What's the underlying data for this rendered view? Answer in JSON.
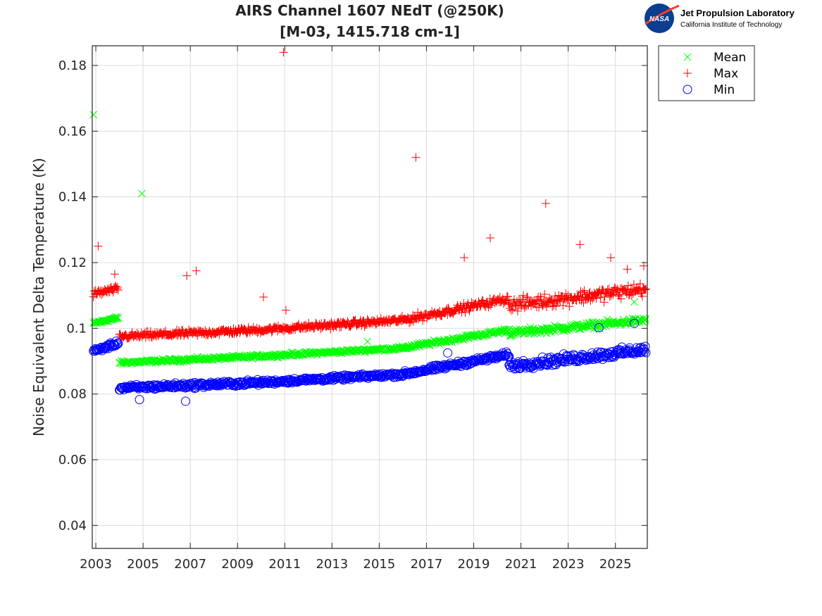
{
  "chart_data": {
    "type": "scatter",
    "title_line1": "AIRS Channel 1607 NEdT (@250K)",
    "title_line2": "[M-03, 1415.718 cm-1]",
    "xlabel": "",
    "ylabel": "Noise Equivalent Delta Temperature (K)",
    "xlim": [
      2002.85,
      2026.35
    ],
    "ylim": [
      0.033,
      0.186
    ],
    "xticks": [
      "2003",
      "2005",
      "2007",
      "2009",
      "2011",
      "2013",
      "2015",
      "2017",
      "2019",
      "2021",
      "2023",
      "2025"
    ],
    "yticks": [
      "0.04",
      "0.06",
      "0.08",
      "0.1",
      "0.12",
      "0.14",
      "0.16",
      "0.18"
    ],
    "grid": true,
    "legend_position": "outside top-right",
    "legend": [
      "Mean",
      "Max",
      "Min"
    ],
    "colors": {
      "Mean": "#00ff00",
      "Max": "#ff0000",
      "Min": "#0000ff"
    },
    "markers": {
      "Mean": "x",
      "Max": "+",
      "Min": "o"
    },
    "series": [
      {
        "name": "Mean",
        "segments": [
          {
            "x_start": 2002.9,
            "x_end": 2003.95,
            "y_start": 0.1015,
            "y_end": 0.1032,
            "jitter": 0.0008
          },
          {
            "x_start": 2004.0,
            "x_end": 2010.0,
            "y_start": 0.0895,
            "y_end": 0.0915,
            "jitter": 0.0008
          },
          {
            "x_start": 2010.0,
            "x_end": 2016.0,
            "y_start": 0.0915,
            "y_end": 0.094,
            "jitter": 0.0008
          },
          {
            "x_start": 2016.0,
            "x_end": 2020.5,
            "y_start": 0.094,
            "y_end": 0.0995,
            "jitter": 0.001
          },
          {
            "x_start": 2020.5,
            "x_end": 2026.3,
            "y_start": 0.0985,
            "y_end": 0.1025,
            "jitter": 0.0015
          }
        ],
        "outliers": [
          [
            2002.9,
            0.165
          ],
          [
            2004.95,
            0.141
          ],
          [
            2014.5,
            0.096
          ],
          [
            2025.8,
            0.108
          ]
        ]
      },
      {
        "name": "Max",
        "segments": [
          {
            "x_start": 2002.9,
            "x_end": 2003.95,
            "y_start": 0.1105,
            "y_end": 0.112,
            "jitter": 0.0015
          },
          {
            "x_start": 2004.0,
            "x_end": 2010.0,
            "y_start": 0.0975,
            "y_end": 0.0995,
            "jitter": 0.0015
          },
          {
            "x_start": 2010.0,
            "x_end": 2016.0,
            "y_start": 0.0995,
            "y_end": 0.1025,
            "jitter": 0.0015
          },
          {
            "x_start": 2016.0,
            "x_end": 2020.5,
            "y_start": 0.1025,
            "y_end": 0.109,
            "jitter": 0.0018
          },
          {
            "x_start": 2020.5,
            "x_end": 2026.3,
            "y_start": 0.107,
            "y_end": 0.112,
            "jitter": 0.003
          }
        ],
        "outliers": [
          [
            2003.1,
            0.125
          ],
          [
            2003.8,
            0.1165
          ],
          [
            2006.85,
            0.116
          ],
          [
            2007.25,
            0.1175
          ],
          [
            2010.95,
            0.184
          ],
          [
            2010.1,
            0.1095
          ],
          [
            2011.05,
            0.1055
          ],
          [
            2016.55,
            0.152
          ],
          [
            2018.6,
            0.1215
          ],
          [
            2019.7,
            0.1275
          ],
          [
            2022.05,
            0.138
          ],
          [
            2023.5,
            0.1255
          ],
          [
            2024.8,
            0.1215
          ],
          [
            2025.5,
            0.118
          ],
          [
            2026.2,
            0.119
          ]
        ]
      },
      {
        "name": "Min",
        "segments": [
          {
            "x_start": 2002.9,
            "x_end": 2003.95,
            "y_start": 0.093,
            "y_end": 0.0955,
            "jitter": 0.001
          },
          {
            "x_start": 2004.0,
            "x_end": 2010.0,
            "y_start": 0.0818,
            "y_end": 0.0835,
            "jitter": 0.0012
          },
          {
            "x_start": 2010.0,
            "x_end": 2016.0,
            "y_start": 0.0835,
            "y_end": 0.086,
            "jitter": 0.001
          },
          {
            "x_start": 2016.0,
            "x_end": 2020.5,
            "y_start": 0.086,
            "y_end": 0.092,
            "jitter": 0.0012
          },
          {
            "x_start": 2020.5,
            "x_end": 2026.3,
            "y_start": 0.0885,
            "y_end": 0.0935,
            "jitter": 0.002
          }
        ],
        "outliers": [
          [
            2006.8,
            0.0778
          ],
          [
            2004.85,
            0.0783
          ],
          [
            2017.9,
            0.0925
          ],
          [
            2024.3,
            0.1002
          ],
          [
            2025.8,
            0.1015
          ]
        ]
      }
    ]
  },
  "logo": {
    "agency": "NASA",
    "lab_name": "Jet Propulsion Laboratory",
    "lab_sub": "California Institute of Technology"
  }
}
